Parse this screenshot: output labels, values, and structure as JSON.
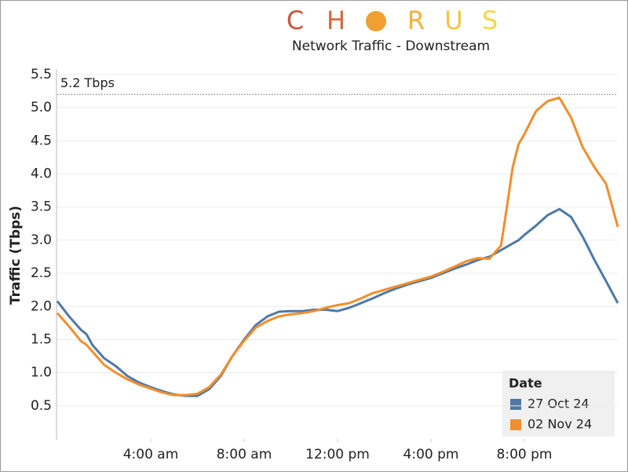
{
  "logo": {
    "letters": [
      "C",
      "H",
      "R",
      "U",
      "S"
    ]
  },
  "chart_data": {
    "type": "line",
    "subtitle": "Network Traffic - Downstream",
    "y_label": "Traffic (Tbps)",
    "x": [
      0,
      0.5,
      1,
      1.25,
      1.5,
      2,
      2.5,
      3,
      3.5,
      4,
      4.5,
      5,
      5.5,
      6,
      6.5,
      7,
      7.5,
      8,
      8.5,
      9,
      9.5,
      10,
      10.5,
      11,
      11.5,
      12,
      12.5,
      13,
      13.5,
      14,
      14.5,
      15,
      15.5,
      16,
      16.5,
      17,
      17.5,
      18,
      18.5,
      19,
      19.25,
      19.5,
      19.75,
      20,
      20.5,
      21,
      21.5,
      22,
      22.5,
      23,
      23.5,
      24
    ],
    "series": [
      {
        "name": "27 Oct 24",
        "color": "#4e79a7",
        "values": [
          2.08,
          1.85,
          1.65,
          1.58,
          1.42,
          1.22,
          1.1,
          0.95,
          0.85,
          0.78,
          0.72,
          0.67,
          0.65,
          0.65,
          0.75,
          0.95,
          1.25,
          1.5,
          1.72,
          1.85,
          1.92,
          1.93,
          1.93,
          1.95,
          1.95,
          1.93,
          1.98,
          2.05,
          2.12,
          2.2,
          2.27,
          2.33,
          2.38,
          2.43,
          2.5,
          2.57,
          2.63,
          2.7,
          2.75,
          2.85,
          2.9,
          2.95,
          3.0,
          3.08,
          3.22,
          3.38,
          3.47,
          3.35,
          3.05,
          2.7,
          2.38,
          2.05
        ]
      },
      {
        "name": "02 Nov 24",
        "color": "#f28e2b",
        "values": [
          1.9,
          1.7,
          1.48,
          1.42,
          1.32,
          1.12,
          1.0,
          0.9,
          0.82,
          0.76,
          0.7,
          0.66,
          0.66,
          0.68,
          0.78,
          0.97,
          1.25,
          1.48,
          1.68,
          1.78,
          1.85,
          1.88,
          1.9,
          1.93,
          1.98,
          2.02,
          2.05,
          2.12,
          2.2,
          2.25,
          2.3,
          2.35,
          2.4,
          2.45,
          2.52,
          2.6,
          2.68,
          2.73,
          2.72,
          2.92,
          3.5,
          4.1,
          4.45,
          4.6,
          4.95,
          5.1,
          5.15,
          4.85,
          4.4,
          4.1,
          3.85,
          3.2
        ]
      }
    ],
    "xlim": [
      0,
      24
    ],
    "xticks": [
      {
        "value": 4,
        "label": "4:00 am"
      },
      {
        "value": 8,
        "label": "8:00 am"
      },
      {
        "value": 12,
        "label": "12:00 pm"
      },
      {
        "value": 16,
        "label": "4:00 pm"
      },
      {
        "value": 20,
        "label": "8:00 pm"
      }
    ],
    "ylim": [
      0,
      5.5
    ],
    "yticks": [
      0.5,
      {
        "value": 1,
        "label": "1.0"
      },
      1.5,
      {
        "value": 2,
        "label": "2.0"
      },
      2.5,
      {
        "value": 3,
        "label": "3.0"
      },
      3.5,
      {
        "value": 4,
        "label": "4.0"
      },
      4.5,
      {
        "value": 5,
        "label": "5.0"
      },
      5.5
    ],
    "reference_line": {
      "value": 5.2,
      "label": "5.2 Tbps"
    },
    "legend_title": "Date",
    "legend_position": "bottom-right",
    "grid": true
  }
}
